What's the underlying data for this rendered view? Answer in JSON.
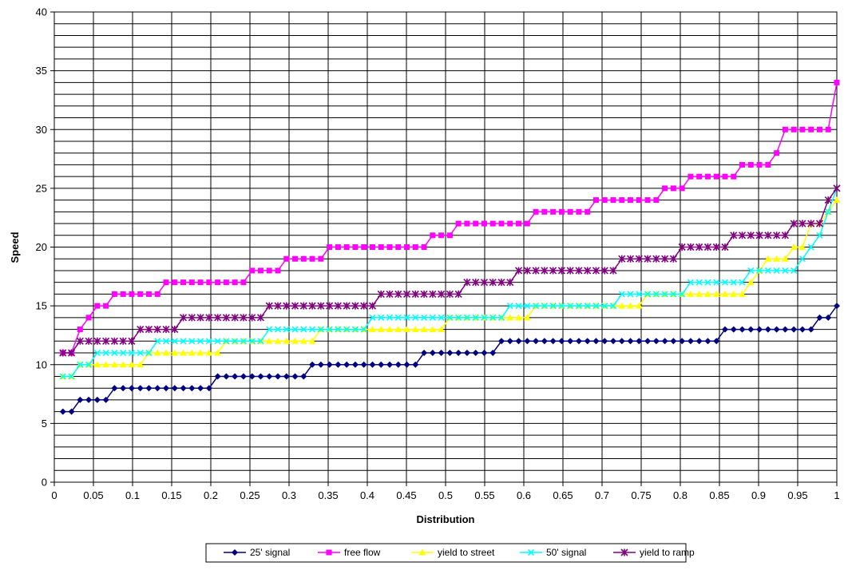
{
  "chart_data": {
    "type": "line",
    "title": "",
    "xlabel": "Distribution",
    "ylabel": "Speed",
    "xlim": [
      0,
      1
    ],
    "ylim": [
      0,
      40
    ],
    "x_tick_labels": [
      "0",
      "0.05",
      "0.1",
      "0.15",
      "0.2",
      "0.25",
      "0.3",
      "0.35",
      "0.4",
      "0.45",
      "0.5",
      "0.55",
      "0.6",
      "0.65",
      "0.7",
      "0.75",
      "0.8",
      "0.85",
      "0.9",
      "0.95",
      "1"
    ],
    "y_tick_labels": [
      "0",
      "5",
      "10",
      "15",
      "20",
      "25",
      "30",
      "35",
      "40"
    ],
    "grid": true,
    "legend_position": "bottom",
    "series": [
      {
        "name": "25' signal",
        "color": "#000080",
        "marker": "diamond",
        "steps": [
          [
            0.011,
            6
          ],
          [
            0.022,
            7
          ],
          [
            0.066,
            8
          ],
          [
            0.198,
            9
          ],
          [
            0.329,
            10
          ],
          [
            0.472,
            11
          ],
          [
            0.571,
            12
          ],
          [
            0.857,
            13
          ],
          [
            0.978,
            14
          ],
          [
            1.0,
            15
          ]
        ]
      },
      {
        "name": "free flow",
        "color": "#FF00FF",
        "marker": "square",
        "steps": [
          [
            0.011,
            11
          ],
          [
            0.022,
            12
          ],
          [
            0.027,
            13
          ],
          [
            0.038,
            14
          ],
          [
            0.049,
            15
          ],
          [
            0.066,
            16
          ],
          [
            0.132,
            17
          ],
          [
            0.242,
            18
          ],
          [
            0.286,
            19
          ],
          [
            0.341,
            20
          ],
          [
            0.473,
            21
          ],
          [
            0.511,
            22
          ],
          [
            0.615,
            23
          ],
          [
            0.682,
            24
          ],
          [
            0.77,
            25
          ],
          [
            0.813,
            26
          ],
          [
            0.879,
            27
          ],
          [
            0.922,
            28
          ],
          [
            0.934,
            30
          ],
          [
            0.99,
            33
          ],
          [
            1.0,
            34
          ]
        ]
      },
      {
        "name": "yield to street",
        "color": "#FFFF00",
        "marker": "triangle",
        "steps": [
          [
            0.011,
            9
          ],
          [
            0.022,
            10
          ],
          [
            0.11,
            11
          ],
          [
            0.209,
            12
          ],
          [
            0.264,
            12
          ],
          [
            0.33,
            13
          ],
          [
            0.495,
            14
          ],
          [
            0.605,
            15
          ],
          [
            0.758,
            16
          ],
          [
            0.884,
            17
          ],
          [
            0.901,
            18
          ],
          [
            0.912,
            19
          ],
          [
            0.945,
            20
          ],
          [
            0.967,
            22
          ],
          [
            0.989,
            23
          ],
          [
            1.0,
            24
          ]
        ]
      },
      {
        "name": "50' signal",
        "color": "#00FFFF",
        "marker": "x",
        "steps": [
          [
            0.011,
            9
          ],
          [
            0.022,
            10
          ],
          [
            0.044,
            11
          ],
          [
            0.121,
            12
          ],
          [
            0.269,
            13
          ],
          [
            0.396,
            14
          ],
          [
            0.576,
            15
          ],
          [
            0.725,
            16
          ],
          [
            0.813,
            17
          ],
          [
            0.884,
            18
          ],
          [
            0.95,
            19
          ],
          [
            0.967,
            20
          ],
          [
            0.978,
            21
          ],
          [
            0.989,
            23
          ],
          [
            1.0,
            25
          ]
        ]
      },
      {
        "name": "yield to ramp",
        "color": "#800080",
        "marker": "star",
        "steps": [
          [
            0.011,
            11
          ],
          [
            0.022,
            12
          ],
          [
            0.099,
            13
          ],
          [
            0.154,
            14
          ],
          [
            0.264,
            15
          ],
          [
            0.407,
            16
          ],
          [
            0.517,
            17
          ],
          [
            0.589,
            18
          ],
          [
            0.719,
            19
          ],
          [
            0.802,
            20
          ],
          [
            0.868,
            21
          ],
          [
            0.945,
            22
          ],
          [
            0.989,
            24
          ],
          [
            1.0,
            25
          ]
        ]
      }
    ]
  }
}
